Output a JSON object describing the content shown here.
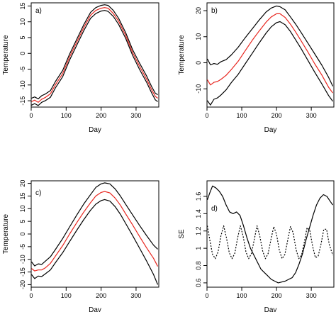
{
  "chart_data": [
    {
      "panel": "a)",
      "type": "line",
      "xlabel": "Day",
      "ylabel": "Temperature",
      "xlim": [
        0,
        365
      ],
      "ylim": [
        -17,
        16
      ],
      "xticks": [
        0,
        100,
        200,
        300
      ],
      "yticks": [
        -15,
        -10,
        -5,
        0,
        5,
        10,
        15
      ],
      "grid": false,
      "series": [
        {
          "color": "#000000",
          "dash": "",
          "x": [
            1,
            10,
            20,
            30,
            40,
            55,
            70,
            90,
            110,
            130,
            150,
            170,
            185,
            200,
            210,
            220,
            235,
            250,
            270,
            290,
            310,
            330,
            345,
            355,
            362
          ],
          "y": [
            -14.2,
            -13.8,
            -14.4,
            -13.4,
            -12.9,
            -11.8,
            -8.8,
            -5.4,
            -0.2,
            4.4,
            9.0,
            13.0,
            14.5,
            15.2,
            15.4,
            15.2,
            13.6,
            11.1,
            6.6,
            1.2,
            -3.1,
            -7.1,
            -10.6,
            -12.6,
            -13.1
          ]
        },
        {
          "color": "#000000",
          "dash": "",
          "x": [
            1,
            10,
            20,
            30,
            40,
            55,
            70,
            90,
            110,
            130,
            150,
            170,
            185,
            200,
            210,
            220,
            235,
            250,
            270,
            290,
            310,
            330,
            345,
            355,
            362
          ],
          "y": [
            -16.4,
            -15.9,
            -16.5,
            -15.5,
            -15.0,
            -13.9,
            -10.8,
            -7.4,
            -2.1,
            2.5,
            7.1,
            11.1,
            12.6,
            13.4,
            13.6,
            13.3,
            11.7,
            9.2,
            4.8,
            -0.6,
            -5.1,
            -9.1,
            -12.6,
            -14.7,
            -15.3
          ]
        },
        {
          "color": "#e8261f",
          "dash": "",
          "x": [
            1,
            10,
            20,
            30,
            40,
            55,
            70,
            90,
            110,
            130,
            150,
            170,
            185,
            200,
            210,
            220,
            235,
            250,
            270,
            290,
            310,
            330,
            345,
            355,
            362
          ],
          "y": [
            -15.3,
            -14.8,
            -15.5,
            -14.5,
            -14.0,
            -12.8,
            -9.8,
            -6.4,
            -1.1,
            3.5,
            8.1,
            12.1,
            13.6,
            14.3,
            14.5,
            14.3,
            12.6,
            10.2,
            5.7,
            0.3,
            -4.1,
            -8.1,
            -11.6,
            -13.6,
            -14.2
          ]
        }
      ]
    },
    {
      "panel": "b)",
      "type": "line",
      "xlabel": "Day",
      "ylabel": "Temperature",
      "xlim": [
        0,
        365
      ],
      "ylim": [
        -17,
        23
      ],
      "xticks": [
        0,
        100,
        200,
        300
      ],
      "yticks": [
        -10,
        0,
        10,
        20
      ],
      "grid": false,
      "series": [
        {
          "color": "#000000",
          "dash": "",
          "x": [
            1,
            10,
            20,
            30,
            40,
            55,
            70,
            90,
            110,
            130,
            150,
            170,
            185,
            200,
            210,
            225,
            240,
            255,
            270,
            290,
            310,
            330,
            350,
            362
          ],
          "y": [
            1.5,
            -0.8,
            -0.3,
            -0.6,
            0.4,
            1.2,
            3.0,
            6.0,
            9.6,
            13.0,
            16.4,
            19.5,
            21.0,
            21.8,
            21.5,
            20.3,
            17.6,
            14.8,
            11.8,
            7.6,
            3.4,
            -0.8,
            -5.6,
            -9.0
          ]
        },
        {
          "color": "#e8261f",
          "dash": "",
          "x": [
            1,
            10,
            20,
            30,
            40,
            55,
            70,
            90,
            110,
            130,
            150,
            170,
            185,
            200,
            210,
            225,
            240,
            255,
            270,
            290,
            310,
            330,
            350,
            362
          ],
          "y": [
            -6.5,
            -8.5,
            -7.5,
            -7.2,
            -6.4,
            -4.8,
            -2.6,
            0.6,
            4.6,
            8.6,
            12.2,
            15.6,
            17.6,
            18.8,
            18.8,
            17.4,
            14.8,
            11.8,
            8.6,
            4.2,
            -0.4,
            -4.6,
            -9.4,
            -11.6
          ]
        },
        {
          "color": "#000000",
          "dash": "",
          "x": [
            1,
            10,
            20,
            30,
            40,
            55,
            70,
            90,
            110,
            130,
            150,
            170,
            185,
            200,
            210,
            225,
            240,
            255,
            270,
            290,
            310,
            330,
            350,
            362
          ],
          "y": [
            -14.5,
            -16.2,
            -14.0,
            -13.5,
            -12.4,
            -10.4,
            -7.6,
            -4.4,
            -0.4,
            3.6,
            7.6,
            11.4,
            13.8,
            15.4,
            15.8,
            14.6,
            12.0,
            8.8,
            5.6,
            1.0,
            -3.6,
            -8.0,
            -12.6,
            -14.8
          ]
        }
      ]
    },
    {
      "panel": "c)",
      "type": "line",
      "xlabel": "Day",
      "ylabel": "Temperature",
      "xlim": [
        0,
        365
      ],
      "ylim": [
        -21,
        21
      ],
      "xticks": [
        0,
        100,
        200,
        300
      ],
      "yticks": [
        -20,
        -15,
        -10,
        -5,
        0,
        5,
        10,
        15,
        20
      ],
      "grid": false,
      "series": [
        {
          "color": "#000000",
          "dash": "",
          "x": [
            1,
            10,
            20,
            30,
            40,
            55,
            70,
            90,
            110,
            130,
            150,
            170,
            185,
            200,
            210,
            225,
            240,
            255,
            270,
            290,
            310,
            330,
            350,
            362
          ],
          "y": [
            -11.0,
            -12.6,
            -11.8,
            -12.0,
            -10.8,
            -9.0,
            -6.0,
            -1.8,
            2.8,
            7.4,
            11.8,
            15.6,
            18.4,
            19.8,
            20.2,
            19.8,
            17.8,
            15.0,
            11.8,
            7.6,
            3.4,
            -0.6,
            -4.4,
            -6.0
          ]
        },
        {
          "color": "#e8261f",
          "dash": "",
          "x": [
            1,
            10,
            20,
            30,
            40,
            55,
            70,
            90,
            110,
            130,
            150,
            170,
            185,
            200,
            210,
            225,
            240,
            255,
            270,
            290,
            310,
            330,
            350,
            362
          ],
          "y": [
            -13.6,
            -14.6,
            -14.2,
            -14.2,
            -13.4,
            -11.6,
            -8.6,
            -4.6,
            0.0,
            4.4,
            8.6,
            12.4,
            15.0,
            16.4,
            16.8,
            16.2,
            14.2,
            11.4,
            8.0,
            3.6,
            -1.0,
            -5.4,
            -9.6,
            -12.8
          ]
        },
        {
          "color": "#000000",
          "dash": "",
          "x": [
            1,
            10,
            20,
            30,
            40,
            55,
            70,
            90,
            110,
            130,
            150,
            170,
            185,
            200,
            210,
            225,
            240,
            255,
            270,
            290,
            310,
            330,
            350,
            362
          ],
          "y": [
            -16.0,
            -17.6,
            -16.6,
            -16.8,
            -15.8,
            -14.2,
            -11.2,
            -7.4,
            -3.0,
            1.4,
            5.6,
            9.4,
            11.8,
            13.2,
            13.6,
            13.0,
            10.8,
            7.8,
            4.2,
            -0.6,
            -5.6,
            -10.6,
            -16.0,
            -20.0
          ]
        }
      ]
    },
    {
      "panel": "d)",
      "type": "line",
      "xlabel": "Day",
      "ylabel": "SE",
      "xlim": [
        0,
        365
      ],
      "ylim": [
        0.55,
        1.78
      ],
      "xticks": [
        0,
        100,
        200,
        300
      ],
      "yticks": [
        0.6,
        0.8,
        1.0,
        1.2,
        1.4,
        1.6
      ],
      "grid": false,
      "series": [
        {
          "color": "#000000",
          "dash": "",
          "x": [
            1,
            8,
            16,
            25,
            35,
            45,
            55,
            65,
            75,
            85,
            95,
            105,
            115,
            125,
            135,
            145,
            155,
            165,
            175,
            185,
            195,
            205,
            215,
            225,
            235,
            245,
            255,
            265,
            275,
            285,
            295,
            305,
            315,
            325,
            335,
            345,
            355,
            362
          ],
          "y": [
            1.56,
            1.64,
            1.72,
            1.7,
            1.66,
            1.6,
            1.5,
            1.42,
            1.4,
            1.42,
            1.38,
            1.26,
            1.12,
            1.0,
            0.92,
            0.84,
            0.76,
            0.72,
            0.68,
            0.64,
            0.62,
            0.6,
            0.61,
            0.62,
            0.64,
            0.66,
            0.72,
            0.82,
            0.94,
            1.1,
            1.24,
            1.38,
            1.5,
            1.58,
            1.62,
            1.6,
            1.54,
            1.5
          ]
        },
        {
          "color": "#000000",
          "dash": "2,2",
          "x": [
            1,
            8,
            16,
            24,
            32,
            40,
            48,
            56,
            64,
            72,
            80,
            88,
            96,
            104,
            112,
            120,
            128,
            136,
            144,
            152,
            160,
            168,
            176,
            184,
            192,
            200,
            208,
            216,
            224,
            232,
            240,
            248,
            256,
            264,
            272,
            280,
            288,
            296,
            304,
            312,
            320,
            328,
            336,
            344,
            352,
            362
          ],
          "y": [
            1.26,
            1.1,
            0.93,
            0.88,
            0.96,
            1.14,
            1.26,
            1.12,
            0.95,
            0.88,
            0.94,
            1.12,
            1.26,
            1.14,
            0.96,
            0.88,
            0.94,
            1.1,
            1.26,
            1.14,
            0.97,
            0.88,
            0.94,
            1.1,
            1.25,
            1.16,
            0.98,
            0.88,
            0.93,
            1.09,
            1.25,
            1.18,
            0.99,
            0.88,
            0.92,
            1.07,
            1.24,
            1.2,
            1.02,
            0.89,
            0.91,
            1.05,
            1.22,
            1.22,
            1.04,
            0.92
          ]
        }
      ]
    }
  ]
}
